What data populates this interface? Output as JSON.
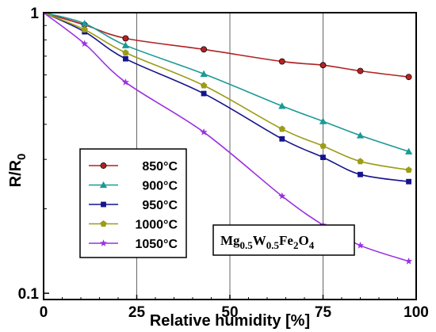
{
  "chart_data": {
    "type": "line",
    "xlabel": "Relative humidity [%]",
    "ylabel_main": "R/R",
    "ylabel_sub": "0",
    "xlim": [
      0,
      100
    ],
    "ylim": [
      0.095,
      1.0
    ],
    "y_scale": "log",
    "x_ticks": [
      0,
      25,
      50,
      75,
      100
    ],
    "x_tick_labels": [
      "0",
      "25",
      "50",
      "75",
      "100"
    ],
    "y_ticks": [
      0.1,
      1
    ],
    "y_tick_labels": [
      "0.1",
      "1"
    ],
    "grid": "vertical lines at 25, 50, 75",
    "legend_position": "lower-left",
    "annotation": {
      "parts": [
        {
          "text": "Mg",
          "sub": false
        },
        {
          "text": "0.5",
          "sub": true
        },
        {
          "text": "W",
          "sub": false
        },
        {
          "text": "0.5",
          "sub": true
        },
        {
          "text": "Fe",
          "sub": false
        },
        {
          "text": "2",
          "sub": true
        },
        {
          "text": "O",
          "sub": false
        },
        {
          "text": "4",
          "sub": true
        }
      ]
    },
    "series": [
      {
        "name": "850°C",
        "color": "#b22222",
        "marker": "circle",
        "x": [
          0,
          11,
          22,
          43,
          64,
          75,
          85,
          98
        ],
        "y": [
          1.0,
          0.905,
          0.81,
          0.74,
          0.67,
          0.65,
          0.62,
          0.59
        ]
      },
      {
        "name": "900°C",
        "color": "#1a9a96",
        "marker": "triangle",
        "x": [
          0,
          11,
          22,
          43,
          64,
          75,
          85,
          98
        ],
        "y": [
          1.0,
          0.915,
          0.765,
          0.605,
          0.465,
          0.41,
          0.365,
          0.32
        ]
      },
      {
        "name": "950°C",
        "color": "#14148c",
        "marker": "square",
        "x": [
          0,
          11,
          22,
          43,
          64,
          75,
          85,
          98
        ],
        "y": [
          1.0,
          0.855,
          0.685,
          0.515,
          0.355,
          0.305,
          0.265,
          0.25
        ]
      },
      {
        "name": "1000°C",
        "color": "#9c9c18",
        "marker": "pentagon",
        "x": [
          0,
          11,
          22,
          43,
          64,
          75,
          85,
          98
        ],
        "y": [
          1.0,
          0.87,
          0.72,
          0.55,
          0.385,
          0.335,
          0.295,
          0.275
        ]
      },
      {
        "name": "1050°C",
        "color": "#9b30e0",
        "marker": "star",
        "x": [
          0,
          11,
          22,
          43,
          64,
          75,
          85,
          98
        ],
        "y": [
          1.0,
          0.775,
          0.565,
          0.375,
          0.222,
          0.175,
          0.148,
          0.13
        ]
      }
    ]
  }
}
